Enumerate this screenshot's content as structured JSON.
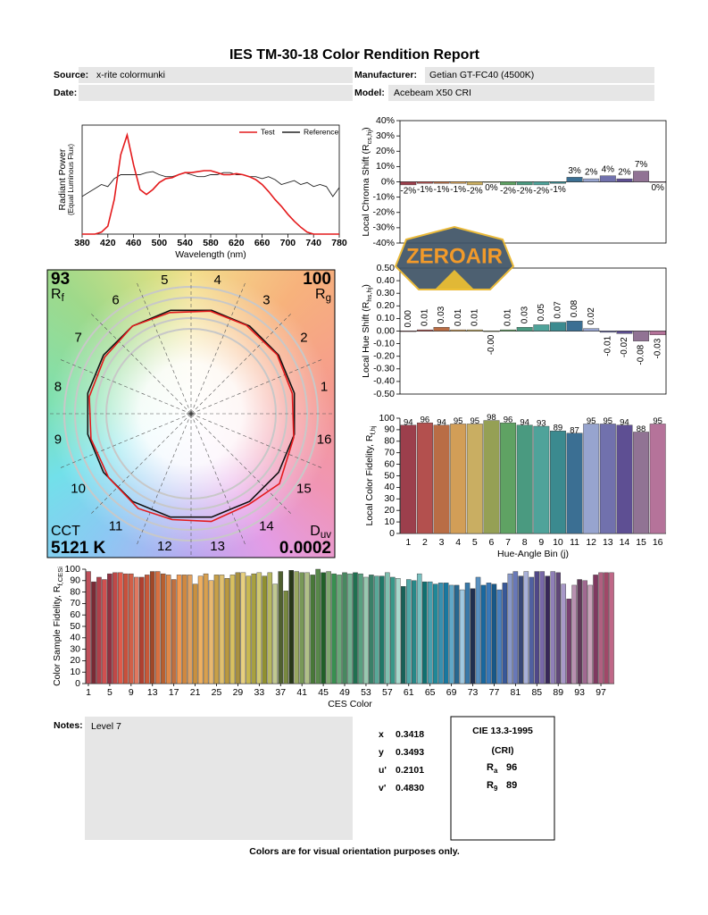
{
  "title": "IES TM-30-18 Color Rendition Report",
  "fields": [
    {
      "label": "Source:",
      "value": "x-rite colormunki"
    },
    {
      "label": "Manufacturer:",
      "value": "Getian GT-FC40 (4500K)"
    },
    {
      "label": "Date:"
    },
    {
      "label": "Model:",
      "value": "Acebeam X50 CRI"
    }
  ],
  "watermark": "ZEROAIR",
  "chart_data": [
    {
      "type": "line",
      "ylabel": [
        "Radiant Power",
        "(Equal Luminous Flux)"
      ],
      "xlabel": "Wavelength (nm)",
      "x": [
        380,
        390,
        400,
        410,
        420,
        430,
        440,
        450,
        460,
        470,
        480,
        490,
        500,
        510,
        520,
        530,
        540,
        550,
        560,
        570,
        580,
        590,
        600,
        610,
        620,
        630,
        640,
        650,
        660,
        670,
        680,
        690,
        700,
        710,
        720,
        730,
        740,
        750,
        760,
        770,
        780
      ],
      "xlim": [
        380,
        780
      ],
      "xticks": [
        380,
        420,
        460,
        500,
        540,
        580,
        620,
        660,
        700,
        740,
        780
      ],
      "ylim": [
        0,
        1.1
      ],
      "series": [
        {
          "name": "Test",
          "color": "#e41a1c",
          "values": [
            0,
            0,
            0,
            0.02,
            0.08,
            0.35,
            0.8,
            1.0,
            0.7,
            0.45,
            0.4,
            0.45,
            0.52,
            0.56,
            0.57,
            0.6,
            0.62,
            0.62,
            0.63,
            0.64,
            0.64,
            0.62,
            0.6,
            0.6,
            0.61,
            0.6,
            0.58,
            0.55,
            0.5,
            0.43,
            0.35,
            0.28,
            0.2,
            0.13,
            0.07,
            0.02,
            0,
            0,
            0,
            0,
            0
          ]
        },
        {
          "name": "Reference",
          "color": "#222222",
          "values": [
            0.38,
            0.42,
            0.46,
            0.5,
            0.48,
            0.56,
            0.6,
            0.6,
            0.6,
            0.6,
            0.62,
            0.63,
            0.6,
            0.58,
            0.58,
            0.6,
            0.62,
            0.6,
            0.58,
            0.58,
            0.6,
            0.6,
            0.62,
            0.62,
            0.6,
            0.6,
            0.58,
            0.58,
            0.56,
            0.58,
            0.55,
            0.5,
            0.52,
            0.54,
            0.5,
            0.52,
            0.48,
            0.5,
            0.48,
            0.38,
            0.47
          ]
        }
      ]
    },
    {
      "type": "bar",
      "ylabel": {
        "text": "Local Chroma Shift (R",
        "sub": "cs,hj",
        "end": ")"
      },
      "values": [
        -2,
        -1,
        -1,
        -1,
        -2,
        0,
        -2,
        -2,
        -2,
        -1,
        3,
        2,
        4,
        2,
        7,
        0
      ],
      "value_labels": [
        "-2%",
        "-1%",
        "-1%",
        "-1%",
        "-2%",
        "0%",
        "-2%",
        "-2%",
        "-2%",
        "-1%",
        "3%",
        "2%",
        "4%",
        "2%",
        "7%",
        "0%"
      ],
      "colors": [
        "#9c3f4c",
        "#b3504e",
        "#b96d45",
        "#d29e57",
        "#c9ae62",
        "#95a055",
        "#5fa263",
        "#4a9a80",
        "#4fa39a",
        "#3b8a8f",
        "#3b6f93",
        "#97a4cf",
        "#7171ad",
        "#5e4f93",
        "#917394",
        "#b5739a"
      ],
      "ylim": [
        -40,
        40
      ],
      "yticks": [
        {
          "value": 40,
          "label": "40%"
        },
        {
          "value": 30,
          "label": "30%"
        },
        {
          "value": 20,
          "label": "20%"
        },
        {
          "value": 10,
          "label": "10%"
        },
        {
          "value": 0,
          "label": "0%"
        },
        {
          "value": -10,
          "label": "-10%"
        },
        {
          "value": -20,
          "label": "-20%"
        },
        {
          "value": -30,
          "label": "-30%"
        },
        {
          "value": -40,
          "label": "-40%"
        }
      ]
    },
    {
      "type": "bar",
      "ylabel": {
        "text": "Local Hue Shift (R",
        "sub": "hs,hj",
        "end": ")"
      },
      "values": [
        0,
        0.01,
        0.03,
        0.01,
        0.01,
        0,
        0.01,
        0.03,
        0.05,
        0.07,
        0.08,
        0.02,
        -0.01,
        -0.02,
        -0.08,
        -0.03
      ],
      "value_labels": [
        "0.00",
        "0.01",
        "0.03",
        "0.01",
        "0.01",
        "-0.00",
        "0.01",
        "0.03",
        "0.05",
        "0.07",
        "0.08",
        "0.02",
        "-0.01",
        "-0.02",
        "-0.08",
        "-0.03"
      ],
      "colors": [
        "#9c3f4c",
        "#b3504e",
        "#b96d45",
        "#d29e57",
        "#c9ae62",
        "#95a055",
        "#5fa263",
        "#4a9a80",
        "#4fa39a",
        "#3b8a8f",
        "#3b6f93",
        "#97a4cf",
        "#7171ad",
        "#5e4f93",
        "#917394",
        "#b5739a"
      ],
      "ylim": [
        -0.5,
        0.5
      ],
      "yticks": [
        {
          "value": 0.5,
          "label": "0.50"
        },
        {
          "value": 0.4,
          "label": "0.40"
        },
        {
          "value": 0.3,
          "label": "0.30"
        },
        {
          "value": 0.2,
          "label": "0.20"
        },
        {
          "value": 0.1,
          "label": "0.10"
        },
        {
          "value": 0,
          "label": "0.00"
        },
        {
          "value": -0.1,
          "label": "-0.10"
        },
        {
          "value": -0.2,
          "label": "-0.20"
        },
        {
          "value": -0.3,
          "label": "-0.30"
        },
        {
          "value": -0.4,
          "label": "-0.40"
        },
        {
          "value": -0.5,
          "label": "-0.50"
        }
      ]
    },
    {
      "type": "bar",
      "ylabel": {
        "text": "Local Color Fidelity, R",
        "sub": "f,hj"
      },
      "xlabel": "Hue-Angle Bin (j)",
      "categories": [
        "1",
        "2",
        "3",
        "4",
        "5",
        "6",
        "7",
        "8",
        "9",
        "10",
        "11",
        "12",
        "13",
        "14",
        "15",
        "16"
      ],
      "values": [
        94,
        96,
        94,
        95,
        95,
        98,
        96,
        94,
        93,
        89,
        87,
        95,
        95,
        94,
        88,
        95
      ],
      "colors": [
        "#9c3f4c",
        "#b3504e",
        "#b96d45",
        "#d29e57",
        "#c9ae62",
        "#95a055",
        "#5fa263",
        "#4a9a80",
        "#4fa39a",
        "#3b8a8f",
        "#3b6f93",
        "#97a4cf",
        "#7171ad",
        "#5e4f93",
        "#917394",
        "#b5739a"
      ],
      "ylim": [
        0,
        100
      ],
      "yticks": [
        0,
        10,
        20,
        30,
        40,
        50,
        60,
        70,
        80,
        90,
        100
      ]
    },
    {
      "type": "vector",
      "rf": 93,
      "rf_symbol": "R",
      "rf_sub": "f",
      "rg": 100,
      "rg_symbol": "R",
      "rg_sub": "g",
      "cct_label": "CCT",
      "cct": {
        "value": 5121,
        "label": "5121 K"
      },
      "duv_symbol": "D",
      "duv_sub": "uv",
      "duv": 0.0002,
      "test_color": "#e41a1c",
      "reference_color": "#111111"
    },
    {
      "type": "bar",
      "ylabel": {
        "text": "Color Sample Fidelity, R",
        "sub": "f,CESi"
      },
      "xlabel": "CES Color",
      "x": [
        1,
        2,
        3,
        4,
        5,
        6,
        7,
        8,
        9,
        10,
        11,
        12,
        13,
        14,
        15,
        16,
        17,
        18,
        19,
        20,
        21,
        22,
        23,
        24,
        25,
        26,
        27,
        28,
        29,
        30,
        31,
        32,
        33,
        34,
        35,
        36,
        37,
        38,
        39,
        40,
        41,
        42,
        43,
        44,
        45,
        46,
        47,
        48,
        49,
        50,
        51,
        52,
        53,
        54,
        55,
        56,
        57,
        58,
        59,
        60,
        61,
        62,
        63,
        64,
        65,
        66,
        67,
        68,
        69,
        70,
        71,
        72,
        73,
        74,
        75,
        76,
        77,
        78,
        79,
        80,
        81,
        82,
        83,
        84,
        85,
        86,
        87,
        88,
        89,
        90,
        91,
        92,
        93,
        94,
        95,
        96,
        97,
        98,
        99
      ],
      "values": [
        98,
        89,
        93,
        91,
        96,
        97,
        97,
        96,
        96,
        93,
        93,
        95,
        98,
        98,
        96,
        95,
        91,
        95,
        95,
        95,
        87,
        94,
        96,
        90,
        95,
        95,
        92,
        95,
        97,
        97,
        94,
        96,
        97,
        94,
        97,
        87,
        98,
        81,
        99,
        98,
        97,
        97,
        95,
        100,
        97,
        98,
        96,
        95,
        97,
        96,
        97,
        96,
        93,
        95,
        94,
        94,
        97,
        93,
        92,
        85,
        91,
        90,
        96,
        89,
        89,
        87,
        88,
        88,
        86,
        86,
        82,
        88,
        83,
        93,
        86,
        88,
        87,
        82,
        88,
        96,
        98,
        94,
        98,
        93,
        98,
        98,
        94,
        98,
        97,
        87,
        74,
        86,
        91,
        90,
        86,
        95,
        97,
        97,
        97
      ],
      "colors": [
        "#c0505a",
        "#7a2a35",
        "#b0404a",
        "#d05050",
        "#903040",
        "#c04848",
        "#e05a4a",
        "#c8503c",
        "#d06048",
        "#e07860",
        "#b04030",
        "#c85838",
        "#a04828",
        "#d87040",
        "#b86030",
        "#e08848",
        "#c07040",
        "#f09850",
        "#d08840",
        "#e0a060",
        "#c89040",
        "#f0b060",
        "#d8a050",
        "#e8b870",
        "#c8a048",
        "#e0c070",
        "#b89840",
        "#d8c060",
        "#a89040",
        "#e8d080",
        "#c8b850",
        "#a8a040",
        "#d0c870",
        "#909030",
        "#b8b860",
        "#c0c890",
        "#506030",
        "#788840",
        "#283818",
        "#98a860",
        "#789858",
        "#b0c088",
        "#487838",
        "#58884a",
        "#206028",
        "#80a870",
        "#389050",
        "#68a878",
        "#488860",
        "#70b090",
        "#207050",
        "#58a080",
        "#98c8b0",
        "#3a8068",
        "#58a898",
        "#207868",
        "#80c0b0",
        "#389888",
        "#a8d8cc",
        "#186058",
        "#50a8a8",
        "#288888",
        "#78c0c0",
        "#107070",
        "#48a0b0",
        "#208898",
        "#3890b0",
        "#1878a0",
        "#60a8c8",
        "#286890",
        "#a0c8e0",
        "#3878a8",
        "#203050",
        "#5890c0",
        "#1868a0",
        "#3878b8",
        "#185888",
        "#4880c0",
        "#385898",
        "#8898c8",
        "#6878b8",
        "#384878",
        "#a8b0d8",
        "#5060a0",
        "#504888",
        "#7868a8",
        "#382858",
        "#9080b8",
        "#604878",
        "#a898c8",
        "#784070",
        "#b890b0",
        "#603858",
        "#a06890",
        "#c8a0b8",
        "#803860",
        "#b06080",
        "#a04868",
        "#c06888"
      ],
      "xlim": [
        0.5,
        99.5
      ],
      "xticks": [
        1,
        5,
        9,
        13,
        17,
        21,
        25,
        29,
        33,
        37,
        41,
        45,
        49,
        53,
        57,
        61,
        65,
        69,
        73,
        77,
        81,
        85,
        89,
        93,
        97
      ],
      "ylim": [
        0,
        100
      ],
      "yticks": [
        0,
        10,
        20,
        30,
        40,
        50,
        60,
        70,
        80,
        90,
        100
      ]
    }
  ],
  "notes": {
    "label": "Notes:",
    "text": "Level 7"
  },
  "chromaticity": [
    {
      "label": "x",
      "value": "0.3418"
    },
    {
      "label": "y",
      "value": "0.3493"
    },
    {
      "label": "u'",
      "value": "0.2101"
    },
    {
      "label": "v'",
      "value": "0.4830"
    }
  ],
  "cri": {
    "title": "CIE 13.3-1995",
    "subtitle": "(CRI)",
    "rows": [
      {
        "symbol": "R",
        "sub": "a",
        "value": "96"
      },
      {
        "symbol": "R",
        "sub": "9",
        "value": "89"
      }
    ]
  },
  "footer": "Colors are for visual orientation purposes only."
}
